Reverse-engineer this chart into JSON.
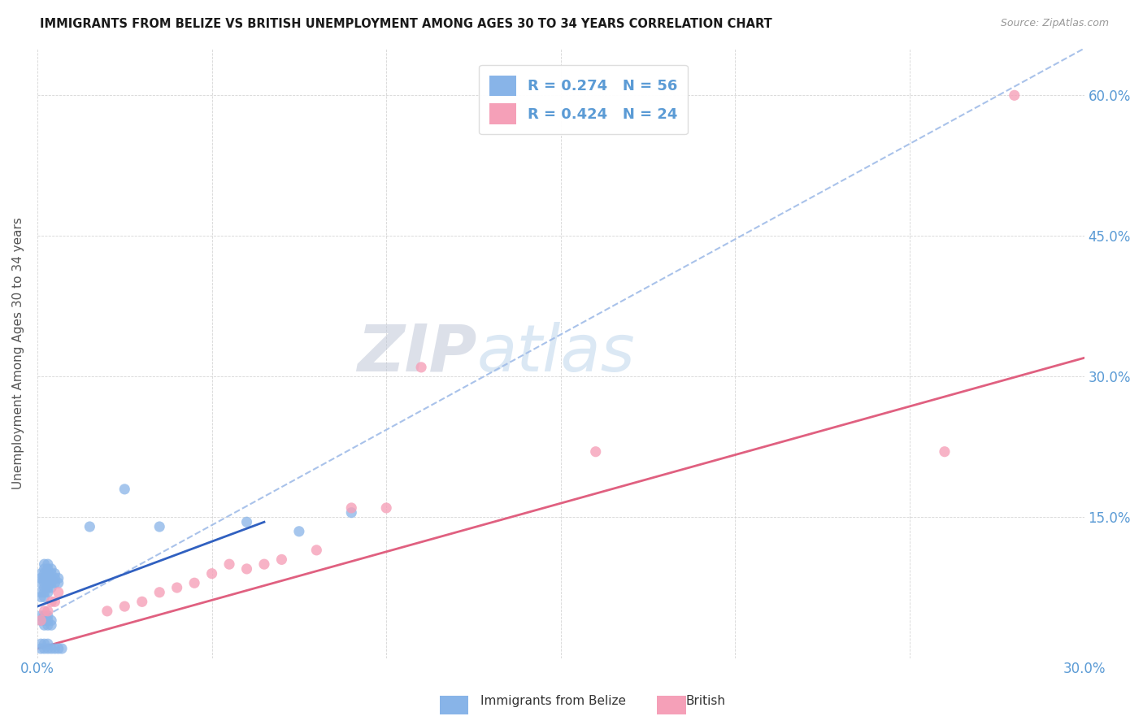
{
  "title": "IMMIGRANTS FROM BELIZE VS BRITISH UNEMPLOYMENT AMONG AGES 30 TO 34 YEARS CORRELATION CHART",
  "source": "Source: ZipAtlas.com",
  "ylabel": "Unemployment Among Ages 30 to 34 years",
  "xlim": [
    0.0,
    0.3
  ],
  "ylim": [
    0.0,
    0.65
  ],
  "xticks": [
    0.0,
    0.05,
    0.1,
    0.15,
    0.2,
    0.25,
    0.3
  ],
  "xticklabels": [
    "0.0%",
    "",
    "",
    "",
    "",
    "",
    "30.0%"
  ],
  "yticks": [
    0.0,
    0.15,
    0.3,
    0.45,
    0.6
  ],
  "ytick_right_labels": [
    "",
    "15.0%",
    "30.0%",
    "45.0%",
    "60.0%"
  ],
  "legend_belize_R": "0.274",
  "legend_belize_N": "56",
  "legend_british_R": "0.424",
  "legend_british_N": "24",
  "color_belize": "#88b4e8",
  "color_british": "#f5a0b8",
  "color_trendline_belize_dash": "#a0bce8",
  "color_trendline_belize_solid": "#3060c0",
  "color_trendline_british": "#e06080",
  "watermark_zip": "ZIP",
  "watermark_atlas": "atlas",
  "belize_x": [
    0.001,
    0.001,
    0.001,
    0.001,
    0.001,
    0.002,
    0.002,
    0.002,
    0.002,
    0.002,
    0.002,
    0.002,
    0.002,
    0.003,
    0.003,
    0.003,
    0.003,
    0.003,
    0.003,
    0.003,
    0.004,
    0.004,
    0.004,
    0.004,
    0.004,
    0.005,
    0.005,
    0.005,
    0.006,
    0.006,
    0.001,
    0.001,
    0.002,
    0.002,
    0.002,
    0.003,
    0.003,
    0.003,
    0.004,
    0.004,
    0.001,
    0.001,
    0.002,
    0.002,
    0.003,
    0.003,
    0.004,
    0.005,
    0.006,
    0.007,
    0.015,
    0.025,
    0.035,
    0.06,
    0.075,
    0.09
  ],
  "belize_y": [
    0.065,
    0.07,
    0.08,
    0.085,
    0.09,
    0.065,
    0.07,
    0.075,
    0.08,
    0.085,
    0.09,
    0.095,
    0.1,
    0.07,
    0.075,
    0.08,
    0.085,
    0.09,
    0.095,
    0.1,
    0.075,
    0.08,
    0.085,
    0.09,
    0.095,
    0.08,
    0.085,
    0.09,
    0.08,
    0.085,
    0.04,
    0.045,
    0.035,
    0.04,
    0.045,
    0.035,
    0.04,
    0.045,
    0.035,
    0.04,
    0.01,
    0.015,
    0.01,
    0.015,
    0.01,
    0.015,
    0.01,
    0.01,
    0.01,
    0.01,
    0.14,
    0.18,
    0.14,
    0.145,
    0.135,
    0.155
  ],
  "british_x": [
    0.001,
    0.002,
    0.003,
    0.004,
    0.005,
    0.006,
    0.02,
    0.025,
    0.03,
    0.035,
    0.04,
    0.045,
    0.05,
    0.055,
    0.06,
    0.065,
    0.07,
    0.08,
    0.09,
    0.1,
    0.11,
    0.16,
    0.26,
    0.28
  ],
  "british_y": [
    0.04,
    0.05,
    0.05,
    0.06,
    0.06,
    0.07,
    0.05,
    0.055,
    0.06,
    0.07,
    0.075,
    0.08,
    0.09,
    0.1,
    0.095,
    0.1,
    0.105,
    0.115,
    0.16,
    0.16,
    0.31,
    0.22,
    0.22,
    0.6
  ],
  "belize_dash_trend_x0": 0.0,
  "belize_dash_trend_x1": 0.3,
  "belize_dash_trend_y0": 0.04,
  "belize_dash_trend_y1": 0.65,
  "belize_solid_trend_x0": 0.0,
  "belize_solid_trend_x1": 0.065,
  "belize_solid_trend_y0": 0.055,
  "belize_solid_trend_y1": 0.145,
  "british_trend_x0": 0.0,
  "british_trend_x1": 0.3,
  "british_trend_y0": 0.01,
  "british_trend_y1": 0.32
}
